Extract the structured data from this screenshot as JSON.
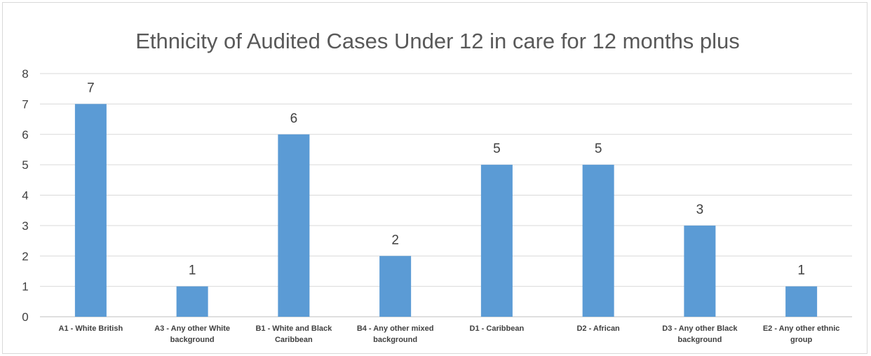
{
  "chart_data": {
    "type": "bar",
    "title": "Ethnicity of Audited Cases Under 12 in care for 12 months plus",
    "xlabel": "",
    "ylabel": "",
    "ylim": [
      0,
      8
    ],
    "yticks": [
      "0",
      "1",
      "2",
      "3",
      "4",
      "5",
      "6",
      "7",
      "8"
    ],
    "grid": true,
    "legend": "none",
    "bar_color": "#5b9bd5",
    "categories": [
      [
        "A1 - White British"
      ],
      [
        "A3 - Any other White",
        "background"
      ],
      [
        "B1 - White and Black",
        "Caribbean"
      ],
      [
        "B4 - Any other mixed",
        "background"
      ],
      [
        "D1 - Caribbean"
      ],
      [
        "D2 - African"
      ],
      [
        "D3 - Any other Black",
        "background"
      ],
      [
        "E2 - Any other ethnic",
        "group"
      ]
    ],
    "values": [
      7,
      1,
      6,
      2,
      5,
      5,
      3,
      1
    ]
  }
}
